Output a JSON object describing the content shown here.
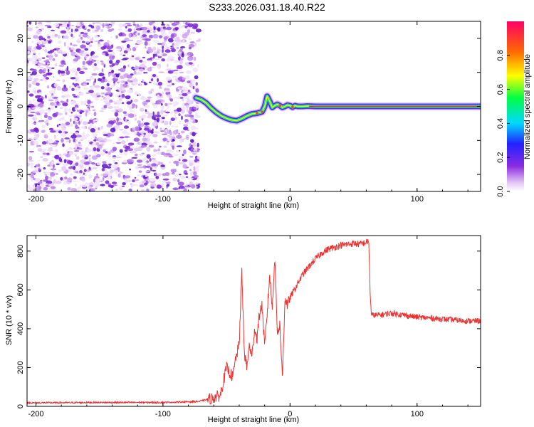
{
  "title": "S233.2026.031.18.40.R22",
  "chart_data": [
    {
      "type": "heatmap",
      "name": "spectrogram",
      "xlabel": "Height of straight line (km)",
      "ylabel": "Frequency (Hz)",
      "xlim": [
        -207,
        150
      ],
      "ylim": [
        -25,
        25
      ],
      "x_ticks": [
        -200,
        -100,
        0,
        100
      ],
      "y_ticks": [
        -20,
        -10,
        0,
        10,
        20
      ],
      "noise_region_x": [
        -207,
        -72
      ],
      "ridge": {
        "x": [
          -74,
          -70,
          -66,
          -62,
          -58,
          -54,
          -50,
          -46,
          -42,
          -38,
          -34,
          -30,
          -26,
          -22,
          -20,
          -18,
          -16,
          -14,
          -12,
          -10,
          -8,
          -6,
          -4,
          -2,
          0,
          2,
          4,
          6,
          10,
          14,
          20,
          40,
          60,
          80,
          100,
          120,
          140,
          150
        ],
        "y": [
          2.5,
          2.0,
          1.0,
          -0.5,
          -1.8,
          -2.8,
          -3.5,
          -4.0,
          -4.2,
          -3.6,
          -2.8,
          -2.2,
          -2.0,
          -1.6,
          0.0,
          3.0,
          1.5,
          -0.3,
          0.2,
          0.6,
          0.2,
          -0.3,
          0.0,
          0.4,
          0.2,
          -0.2,
          0.2,
          0.0,
          0.0,
          0.1,
          0.0,
          0.0,
          0.0,
          0.0,
          0.0,
          0.0,
          0.0,
          0.0
        ]
      },
      "colorbar": {
        "label": "Normalized spectral amplitude",
        "range": [
          0,
          1
        ],
        "ticks": [
          "0.0",
          "0.2",
          "0.4",
          "0.6",
          "0.8"
        ]
      }
    },
    {
      "type": "line",
      "name": "snr",
      "xlabel": "Height of straight line (km)",
      "ylabel": "SNR (10 * v/v)",
      "xlim": [
        -207,
        150
      ],
      "ylim": [
        0,
        880
      ],
      "x_ticks": [
        -200,
        -100,
        0,
        100
      ],
      "y_ticks": [
        0,
        200,
        400,
        600,
        800
      ],
      "color": "#ee3333",
      "series": [
        {
          "name": "SNR",
          "x": [
            -207,
            -150,
            -100,
            -72,
            -62,
            -60,
            -55,
            -50,
            -45,
            -43,
            -40,
            -38,
            -36,
            -34,
            -32,
            -30,
            -28,
            -26,
            -24,
            -22,
            -20,
            -18,
            -16,
            -14,
            -12,
            -10,
            -8,
            -6,
            -4,
            -2,
            0,
            5,
            10,
            15,
            20,
            25,
            30,
            40,
            50,
            55,
            62,
            63,
            64,
            70,
            80,
            90,
            100,
            110,
            120,
            130,
            140,
            150
          ],
          "y": [
            18,
            20,
            20,
            25,
            40,
            45,
            55,
            200,
            150,
            240,
            320,
            700,
            280,
            200,
            320,
            250,
            400,
            350,
            480,
            520,
            300,
            480,
            680,
            500,
            780,
            380,
            420,
            140,
            560,
            520,
            560,
            620,
            680,
            720,
            760,
            790,
            810,
            830,
            840,
            835,
            850,
            600,
            470,
            470,
            480,
            470,
            460,
            455,
            450,
            445,
            440,
            440
          ]
        }
      ]
    }
  ]
}
